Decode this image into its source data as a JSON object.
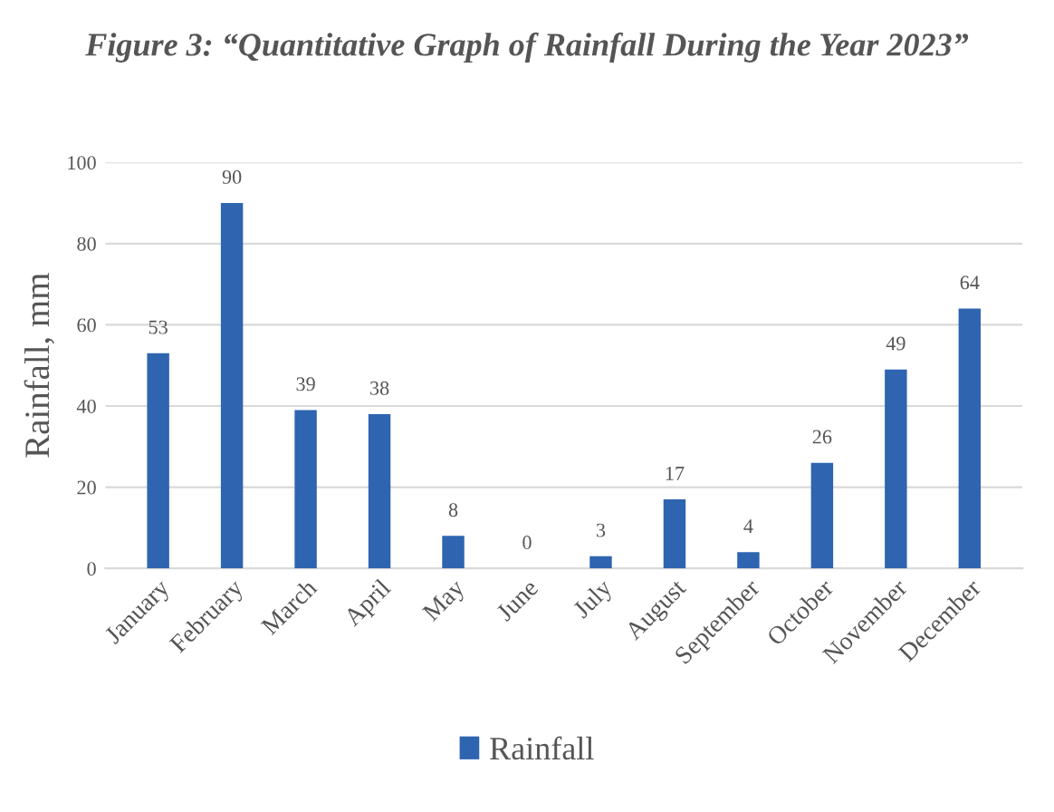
{
  "chart_data": {
    "type": "bar",
    "title": "Figure 3: “Quantitative Graph of Rainfall During the Year 2023”",
    "ylabel": "Rainfall, mm",
    "categories": [
      "January",
      "February",
      "March",
      "April",
      "May",
      "June",
      "July",
      "August",
      "September",
      "October",
      "November",
      "December"
    ],
    "series": [
      {
        "name": "Rainfall",
        "color": "#2e64b0",
        "values": [
          53,
          90,
          39,
          38,
          8,
          0,
          3,
          17,
          4,
          26,
          49,
          64
        ]
      }
    ],
    "ylim": [
      0,
      100
    ],
    "yticks": [
      0,
      20,
      40,
      60,
      80,
      100
    ],
    "grid": "y",
    "legend": "bottom",
    "data_labels": true
  }
}
